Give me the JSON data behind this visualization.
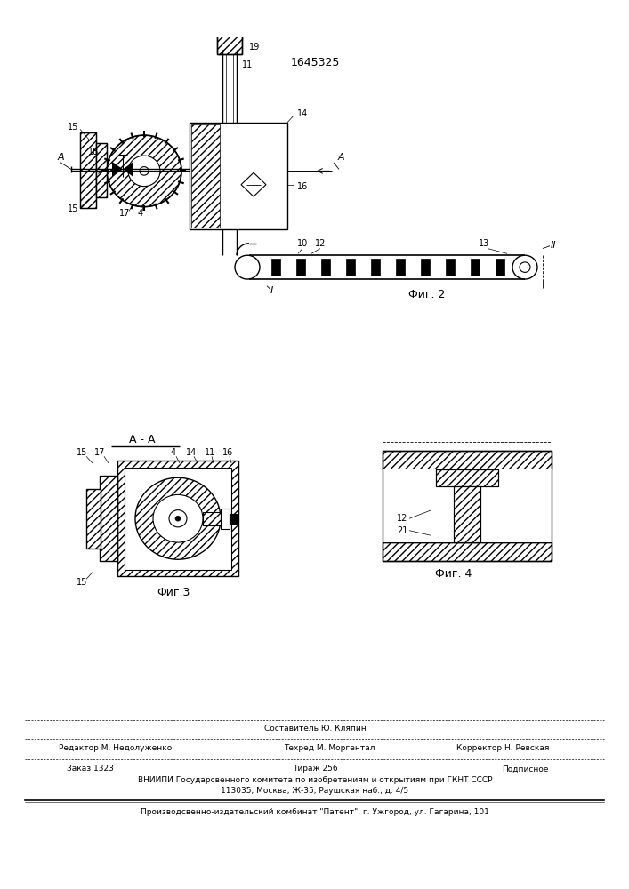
{
  "title_number": "1645325",
  "bg_color": "#ffffff",
  "fig2_label": "Фиг. 2",
  "fig3_label": "Фиг.3",
  "fig4_label": "Фиг. 4",
  "section_label": "A - A",
  "footer_sostavitel": "Составитель Ю. Кляпин",
  "footer_redaktor": "Редактор М. Недолуженко",
  "footer_tehred": "Техред М. Моргентал",
  "footer_korrektor": "Корректор Н. Ревская",
  "footer_zakaz": "Заказ 1323",
  "footer_tirazh": "Тираж 256",
  "footer_podpisnoe": "Подписное",
  "footer_vniip": "ВНИИПИ Государсвенного комитета по изобретениям и открытиям при ГКНТ СССР",
  "footer_address": "113035, Москва, Ж-35, Раушская наб., д. 4/5",
  "footer_publisher": "Производсвенно-издательский комбинат \"Патент\", г. Ужгород, ул. Гагарина, 101"
}
